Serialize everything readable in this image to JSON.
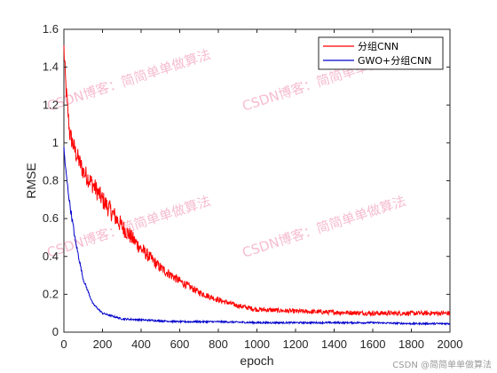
{
  "chart_data": {
    "type": "line",
    "title": "",
    "xlabel": "epoch",
    "ylabel": "RMSE",
    "xlim": [
      0,
      2000
    ],
    "ylim": [
      0,
      1.6
    ],
    "xticks": [
      0,
      200,
      400,
      600,
      800,
      1000,
      1200,
      1400,
      1600,
      1800,
      2000
    ],
    "yticks": [
      0,
      0.2,
      0.4,
      0.6,
      0.8,
      1,
      1.2,
      1.4,
      1.6
    ],
    "grid": false,
    "legend_position": "top-right",
    "series": [
      {
        "name": "分组CNN",
        "color": "#ff0000",
        "x": [
          0,
          10,
          30,
          60,
          100,
          150,
          200,
          300,
          400,
          500,
          600,
          700,
          800,
          900,
          1000,
          1200,
          1400,
          1600,
          1800,
          2000
        ],
        "y": [
          1.5,
          1.3,
          1.05,
          0.95,
          0.85,
          0.78,
          0.7,
          0.56,
          0.44,
          0.34,
          0.27,
          0.21,
          0.17,
          0.14,
          0.12,
          0.11,
          0.105,
          0.1,
          0.1,
          0.1
        ]
      },
      {
        "name": "GWO+分组CNN",
        "color": "#0000cc",
        "x": [
          0,
          10,
          30,
          60,
          100,
          150,
          200,
          300,
          400,
          500,
          600,
          800,
          1000,
          1200,
          1400,
          1600,
          1800,
          2000
        ],
        "y": [
          0.97,
          0.85,
          0.68,
          0.48,
          0.28,
          0.15,
          0.1,
          0.07,
          0.065,
          0.06,
          0.055,
          0.055,
          0.05,
          0.05,
          0.05,
          0.05,
          0.045,
          0.045
        ]
      }
    ]
  },
  "watermark": {
    "text": "CSDN博客：简简单单做算法",
    "footer": "CSDN @简简单单做算法"
  }
}
